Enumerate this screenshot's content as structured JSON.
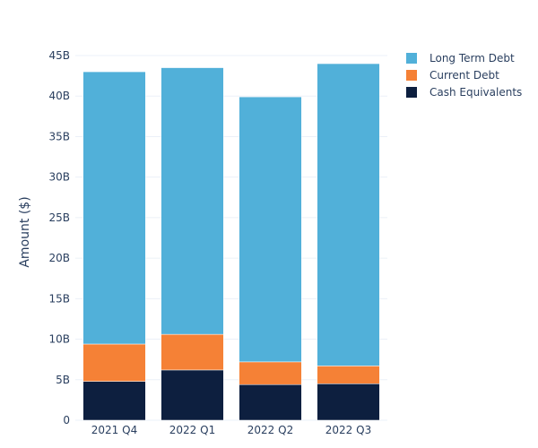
{
  "chart_data": {
    "type": "bar",
    "stacked": true,
    "title": "",
    "xlabel": "",
    "ylabel": "Amount ($)",
    "ylim": [
      0,
      45000000000
    ],
    "yticks": [
      0,
      5000000000,
      10000000000,
      15000000000,
      20000000000,
      25000000000,
      30000000000,
      35000000000,
      40000000000,
      45000000000
    ],
    "ytick_labels": [
      "0",
      "5B",
      "10B",
      "15B",
      "20B",
      "25B",
      "30B",
      "35B",
      "40B",
      "45B"
    ],
    "categories": [
      "2021 Q4",
      "2022 Q1",
      "2022 Q2",
      "2022 Q3"
    ],
    "grid": true,
    "legend_position": "top-right",
    "series": [
      {
        "name": "Cash Equivalents",
        "color": "#0d1f3f",
        "values": [
          4800000000,
          6200000000,
          4400000000,
          4500000000
        ]
      },
      {
        "name": "Current Debt",
        "color": "#f58136",
        "values": [
          4600000000,
          4400000000,
          2800000000,
          2200000000
        ]
      },
      {
        "name": "Long Term Debt",
        "color": "#51b0d9",
        "values": [
          33600000000,
          32900000000,
          32700000000,
          37300000000
        ]
      }
    ],
    "legend_order": [
      "Long Term Debt",
      "Current Debt",
      "Cash Equivalents"
    ]
  }
}
